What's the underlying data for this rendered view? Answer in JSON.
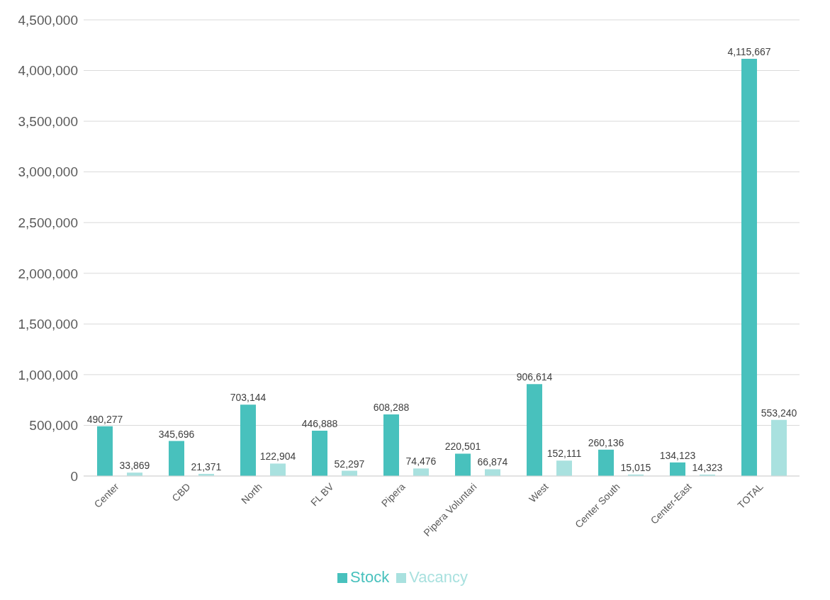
{
  "chart_data": {
    "type": "bar",
    "categories": [
      "Center",
      "CBD",
      "North",
      "FL BV",
      "Pipera",
      "Pipera Voluntari",
      "West",
      "Center South",
      "Center-East",
      "TOTAL"
    ],
    "series": [
      {
        "name": "Stock",
        "color": "#48c1bd",
        "values": [
          490277,
          345696,
          703144,
          446888,
          608288,
          220501,
          906614,
          260136,
          134123,
          4115667
        ],
        "value_labels": [
          "490,277",
          "345,696",
          "703,144",
          "446,888",
          "608,288",
          "220,501",
          "906,614",
          "260,136",
          "134,123",
          "4,115,667"
        ]
      },
      {
        "name": "Vacancy",
        "color": "#a9e1df",
        "values": [
          33869,
          21371,
          122904,
          52297,
          74476,
          66874,
          152111,
          15015,
          14323,
          553240
        ],
        "value_labels": [
          "33,869",
          "21,371",
          "122,904",
          "52,297",
          "74,476",
          "66,874",
          "152,111",
          "15,015",
          "14,323",
          "553,240"
        ]
      }
    ],
    "ylim": [
      0,
      4500000
    ],
    "yticks": [
      {
        "value": 0,
        "label": "0"
      },
      {
        "value": 500000,
        "label": "500,000"
      },
      {
        "value": 1000000,
        "label": "1,000,000"
      },
      {
        "value": 1500000,
        "label": "1,500,000"
      },
      {
        "value": 2000000,
        "label": "2,000,000"
      },
      {
        "value": 2500000,
        "label": "2,500,000"
      },
      {
        "value": 3000000,
        "label": "3,000,000"
      },
      {
        "value": 3500000,
        "label": "3,500,000"
      },
      {
        "value": 4000000,
        "label": "4,000,000"
      },
      {
        "value": 4500000,
        "label": "4,500,000"
      }
    ],
    "grid": "y",
    "legend": "bottom"
  }
}
